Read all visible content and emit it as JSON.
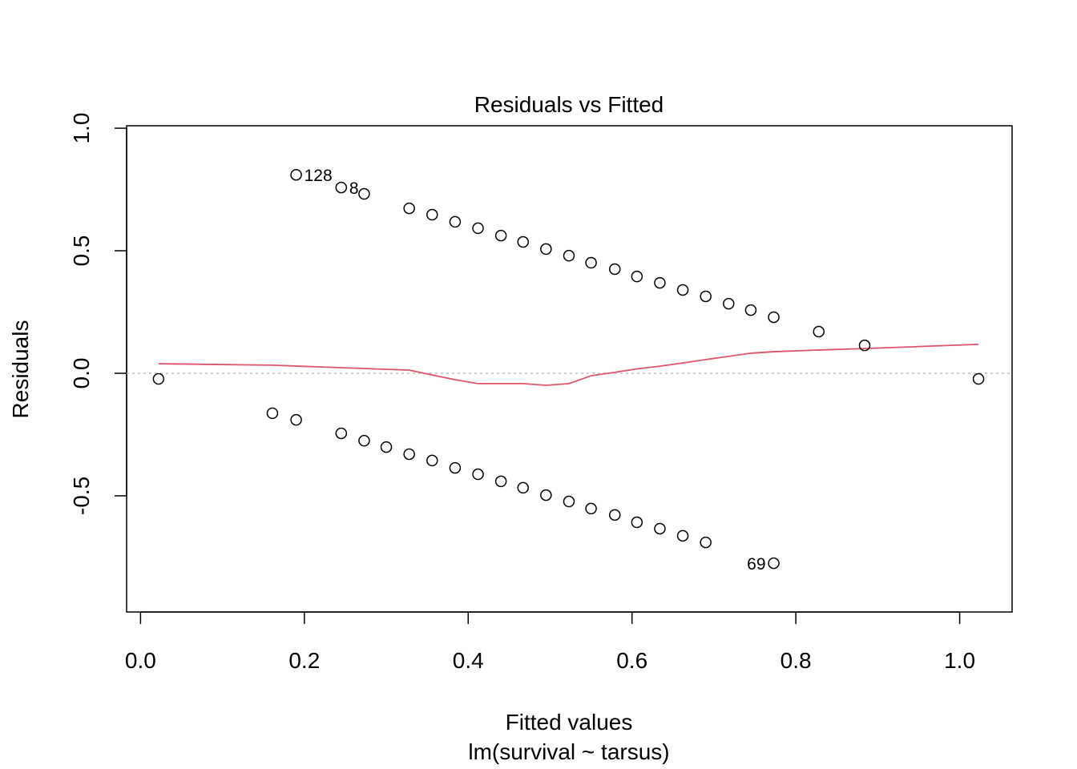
{
  "chart_data": {
    "type": "scatter",
    "title": "Residuals vs Fitted",
    "xlabel": "Fitted values",
    "subtitle": "lm(survival ~ tarsus)",
    "ylabel": "Residuals",
    "xlim": [
      -0.017,
      1.064
    ],
    "ylim": [
      -0.974,
      1.01
    ],
    "xticks": [
      0.0,
      0.2,
      0.4,
      0.6,
      0.8,
      1.0
    ],
    "xtick_labels": [
      "0.0",
      "0.2",
      "0.4",
      "0.6",
      "0.8",
      "1.0"
    ],
    "yticks": [
      -0.5,
      0.0,
      0.5,
      1.0
    ],
    "ytick_labels": [
      "-0.5",
      "0.0",
      "0.5",
      "1.0"
    ],
    "grid": false,
    "reference_line": {
      "y": 0,
      "style": "dotted",
      "color": "#bebebe"
    },
    "points": [
      {
        "x": 0.19,
        "y": 0.81
      },
      {
        "x": 0.245,
        "y": 0.758
      },
      {
        "x": 0.273,
        "y": 0.732
      },
      {
        "x": 0.328,
        "y": 0.673
      },
      {
        "x": 0.356,
        "y": 0.647
      },
      {
        "x": 0.384,
        "y": 0.618
      },
      {
        "x": 0.412,
        "y": 0.592
      },
      {
        "x": 0.44,
        "y": 0.562
      },
      {
        "x": 0.467,
        "y": 0.536
      },
      {
        "x": 0.495,
        "y": 0.507
      },
      {
        "x": 0.523,
        "y": 0.48
      },
      {
        "x": 0.55,
        "y": 0.451
      },
      {
        "x": 0.579,
        "y": 0.425
      },
      {
        "x": 0.606,
        "y": 0.395
      },
      {
        "x": 0.634,
        "y": 0.369
      },
      {
        "x": 0.662,
        "y": 0.34
      },
      {
        "x": 0.69,
        "y": 0.314
      },
      {
        "x": 0.718,
        "y": 0.284
      },
      {
        "x": 0.745,
        "y": 0.258
      },
      {
        "x": 0.773,
        "y": 0.229
      },
      {
        "x": 0.828,
        "y": 0.17
      },
      {
        "x": 0.884,
        "y": 0.114
      },
      {
        "x": 0.022,
        "y": -0.023
      },
      {
        "x": 0.161,
        "y": -0.163
      },
      {
        "x": 0.19,
        "y": -0.19
      },
      {
        "x": 0.245,
        "y": -0.245
      },
      {
        "x": 0.273,
        "y": -0.275
      },
      {
        "x": 0.3,
        "y": -0.301
      },
      {
        "x": 0.328,
        "y": -0.33
      },
      {
        "x": 0.356,
        "y": -0.356
      },
      {
        "x": 0.384,
        "y": -0.386
      },
      {
        "x": 0.412,
        "y": -0.412
      },
      {
        "x": 0.44,
        "y": -0.441
      },
      {
        "x": 0.467,
        "y": -0.467
      },
      {
        "x": 0.495,
        "y": -0.497
      },
      {
        "x": 0.523,
        "y": -0.523
      },
      {
        "x": 0.55,
        "y": -0.552
      },
      {
        "x": 0.579,
        "y": -0.578
      },
      {
        "x": 0.606,
        "y": -0.608
      },
      {
        "x": 0.634,
        "y": -0.634
      },
      {
        "x": 0.662,
        "y": -0.663
      },
      {
        "x": 0.69,
        "y": -0.69
      },
      {
        "x": 0.773,
        "y": -0.775
      },
      {
        "x": 1.023,
        "y": -0.023
      }
    ],
    "annotations": [
      {
        "text": "128",
        "x": 0.19,
        "y": 0.81,
        "side": "right"
      },
      {
        "text": "8",
        "x": 0.245,
        "y": 0.758,
        "side": "right"
      },
      {
        "text": "69",
        "x": 0.773,
        "y": -0.775,
        "side": "left"
      }
    ],
    "smooth": {
      "color": "#df536b",
      "x": [
        0.022,
        0.161,
        0.328,
        0.356,
        0.384,
        0.412,
        0.44,
        0.467,
        0.495,
        0.523,
        0.55,
        0.579,
        0.606,
        0.634,
        0.662,
        0.69,
        0.718,
        0.745,
        0.773,
        0.828,
        0.884,
        1.023
      ],
      "y": [
        0.039,
        0.033,
        0.013,
        -0.007,
        -0.026,
        -0.042,
        -0.042,
        -0.042,
        -0.049,
        -0.042,
        -0.01,
        0.004,
        0.018,
        0.029,
        0.042,
        0.056,
        0.069,
        0.082,
        0.088,
        0.095,
        0.101,
        0.118
      ]
    }
  }
}
